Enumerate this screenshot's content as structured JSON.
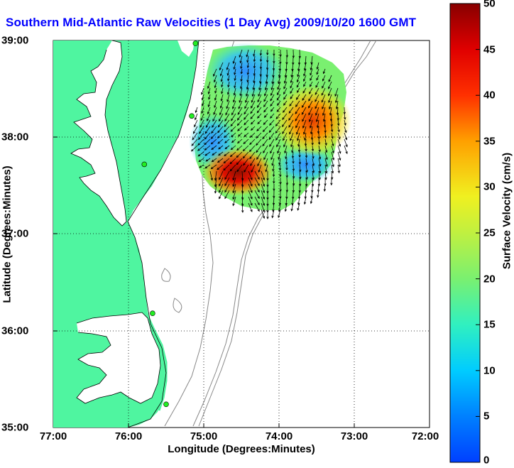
{
  "title": "Southern Mid-Atlantic Raw Velocities (1 Day Avg) 2009/10/20 1600 GMT",
  "axes": {
    "xlabel": "Longitude (Degrees:Minutes)",
    "ylabel": "Latitude (Degrees:Minutes)",
    "xticks": [
      "77:00",
      "76:00",
      "75:00",
      "74:00",
      "73:00",
      "72:00"
    ],
    "yticks": [
      "39:00",
      "38:00",
      "37:00",
      "36:00",
      "35:00"
    ]
  },
  "colorbar": {
    "label": "Surface Velocity (cm/s)",
    "ticks": [
      "50",
      "45",
      "40",
      "35",
      "30",
      "25",
      "20",
      "15",
      "10",
      "5",
      "0"
    ],
    "range": [
      0,
      50
    ]
  },
  "colors": {
    "land": "#4ff5a0",
    "water": "#ffffff",
    "title": "#0000ff",
    "station": "#22ee22",
    "contour": "#888888",
    "arrows": "#000000"
  },
  "map": {
    "lon_range": [
      -77,
      -72
    ],
    "lat_range": [
      35,
      39
    ],
    "grid": "dotted",
    "stations_lonlat": [
      [
        -75.11,
        38.97
      ],
      [
        -75.16,
        38.22
      ],
      [
        -75.79,
        37.72
      ],
      [
        -75.68,
        36.18
      ],
      [
        -75.5,
        35.24
      ]
    ]
  }
}
